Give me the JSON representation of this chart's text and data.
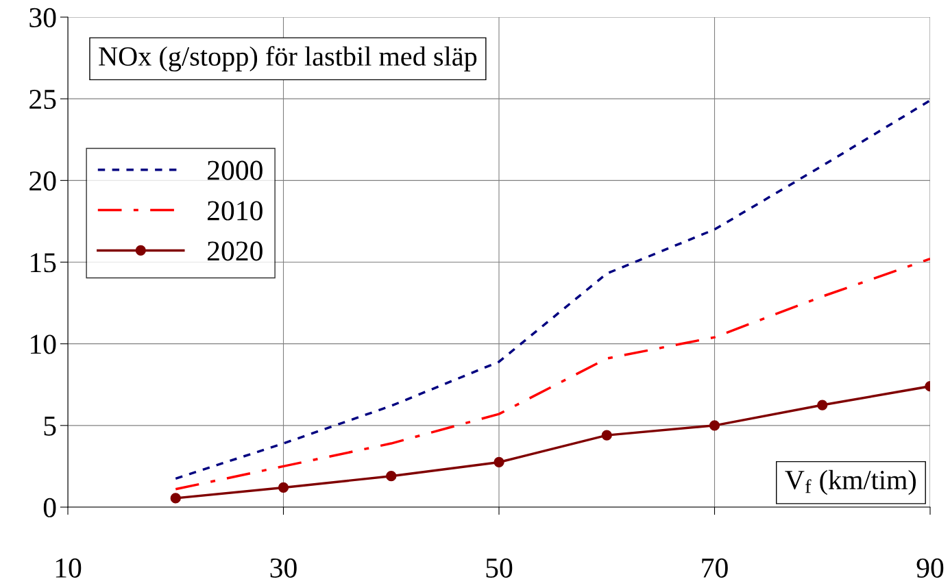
{
  "chart_data": {
    "type": "line",
    "title": "NOx (g/stopp) för lastbil med släp",
    "xlabel": "V$_{f}$ (km/tim)",
    "x": [
      20,
      30,
      40,
      50,
      60,
      70,
      80,
      90
    ],
    "series": [
      {
        "name": "2000",
        "color": "#000080",
        "line_style": "dotted",
        "marker": "none",
        "values": [
          1.75,
          3.9,
          6.2,
          8.9,
          14.3,
          17.0,
          20.9,
          24.9
        ]
      },
      {
        "name": "2010",
        "color": "#ff0000",
        "line_style": "dashdot",
        "marker": "none",
        "values": [
          1.1,
          2.5,
          3.9,
          5.7,
          9.1,
          10.4,
          12.9,
          15.2
        ]
      },
      {
        "name": "2020",
        "color": "#800000",
        "line_style": "solid",
        "marker": "circle",
        "values": [
          0.55,
          1.2,
          1.9,
          2.75,
          4.4,
          5.0,
          6.25,
          7.4
        ]
      }
    ],
    "xlim": [
      10,
      90
    ],
    "xticks": [
      10,
      30,
      50,
      70,
      90
    ],
    "ylim": [
      0,
      30
    ],
    "yticks": [
      0,
      5,
      10,
      15,
      20,
      25,
      30
    ],
    "grid": true,
    "legend": "left"
  }
}
